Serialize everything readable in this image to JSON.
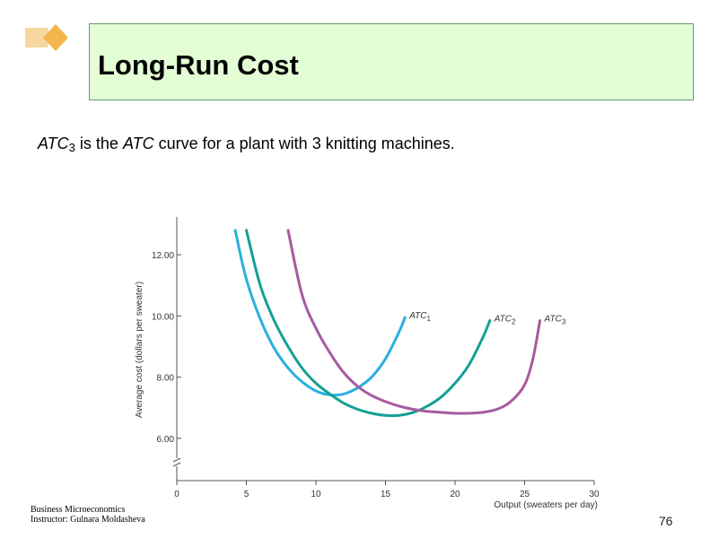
{
  "slide": {
    "title": "Long-Run Cost",
    "subtitle_parts": [
      "ATC",
      "3",
      " is the ",
      "ATC",
      " curve for a plant  with 3 knitting  machines."
    ],
    "footer_line1": "Business Microeconomics",
    "footer_line2": "Instructor: Gulnara Moldasheva",
    "page_number": "76"
  },
  "colors": {
    "title_bg": "#e3fdd5",
    "logo": "#f7d7a0",
    "atc1": "#29afe0",
    "atc2": "#14a095",
    "atc3": "#a85a9f"
  },
  "chart_data": {
    "type": "line",
    "xlabel": "Output (sweaters per day)",
    "ylabel": "Average cost (dollars per sweater)",
    "xlim": [
      0,
      30
    ],
    "ylim": [
      5,
      13
    ],
    "x_ticks": [
      0,
      5,
      10,
      15,
      20,
      25,
      30
    ],
    "x_tick_labels": [
      "0",
      "5",
      "10",
      "15",
      "20",
      "25",
      "30"
    ],
    "y_ticks": [
      6,
      8,
      10,
      12
    ],
    "y_tick_labels": [
      "6.00",
      "8.00",
      "10.00",
      "12.00"
    ],
    "axis_break": true,
    "grid": false,
    "series": [
      {
        "name": "ATC",
        "subscript": "1",
        "points": [
          [
            4.2,
            12.8
          ],
          [
            5,
            11.2
          ],
          [
            6,
            9.9
          ],
          [
            7,
            8.95
          ],
          [
            8,
            8.3
          ],
          [
            9,
            7.85
          ],
          [
            10,
            7.55
          ],
          [
            11,
            7.42
          ],
          [
            12,
            7.45
          ],
          [
            13,
            7.65
          ],
          [
            14,
            8.0
          ],
          [
            15,
            8.6
          ],
          [
            16,
            9.5
          ],
          [
            16.4,
            9.95
          ]
        ]
      },
      {
        "name": "ATC",
        "subscript": "2",
        "points": [
          [
            5,
            12.8
          ],
          [
            6,
            11.0
          ],
          [
            7,
            9.85
          ],
          [
            8,
            9.0
          ],
          [
            9,
            8.3
          ],
          [
            10,
            7.8
          ],
          [
            11,
            7.45
          ],
          [
            12,
            7.15
          ],
          [
            13,
            6.95
          ],
          [
            14,
            6.82
          ],
          [
            15,
            6.75
          ],
          [
            16,
            6.75
          ],
          [
            17,
            6.85
          ],
          [
            18,
            7.05
          ],
          [
            19,
            7.35
          ],
          [
            20,
            7.8
          ],
          [
            21,
            8.4
          ],
          [
            22,
            9.3
          ],
          [
            22.5,
            9.85
          ]
        ]
      },
      {
        "name": "ATC",
        "subscript": "3",
        "points": [
          [
            8,
            12.8
          ],
          [
            9,
            10.7
          ],
          [
            10,
            9.6
          ],
          [
            11,
            8.8
          ],
          [
            12,
            8.15
          ],
          [
            13,
            7.7
          ],
          [
            14,
            7.4
          ],
          [
            15,
            7.2
          ],
          [
            16,
            7.05
          ],
          [
            17,
            6.95
          ],
          [
            18,
            6.88
          ],
          [
            19,
            6.85
          ],
          [
            20,
            6.82
          ],
          [
            21,
            6.82
          ],
          [
            22,
            6.85
          ],
          [
            23,
            6.95
          ],
          [
            24,
            7.2
          ],
          [
            25,
            7.75
          ],
          [
            25.6,
            8.6
          ],
          [
            26.1,
            9.85
          ]
        ]
      }
    ]
  }
}
